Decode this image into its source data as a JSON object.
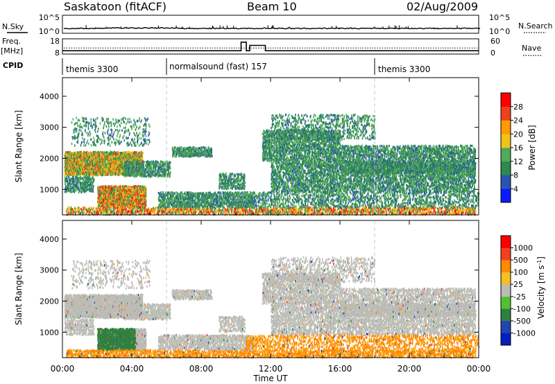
{
  "header": {
    "station": "Saskatoon (fitACF)",
    "beam": "Beam 10",
    "date": "02/Aug/2009"
  },
  "left_labels": {
    "nsky": "N.Sky",
    "freq": "Freq.",
    "freq_unit": "[MHz]",
    "cpid": "CPID"
  },
  "right_labels": {
    "nsearch": "N.Search",
    "nave": "Nave"
  },
  "colors": {
    "scale_power": [
      "#0a1aff",
      "#2855b0",
      "#2e8a4c",
      "#52a85c",
      "#f2c21a",
      "#ff9b00",
      "#f0401c",
      "#ff0000"
    ],
    "scale_velocity": [
      "#ff0000",
      "#f44020",
      "#ff8a00",
      "#f5c020",
      "#bcbcb6",
      "#52c030",
      "#2e8040",
      "#2244b0",
      "#0020c0"
    ]
  },
  "chart_data": [
    {
      "type": "line",
      "name": "noise",
      "left_ticks": [
        "10^5",
        "10^0"
      ],
      "right_ticks": [
        "10^5",
        "10^0"
      ],
      "legend_left": "N.Sky",
      "legend_right": "N.Search"
    },
    {
      "type": "line",
      "name": "freq-nave",
      "left_ticks": [
        18,
        8
      ],
      "right_ticks": [
        60,
        0
      ],
      "ylim_left": [
        8,
        18
      ],
      "ylim_right": [
        0,
        60
      ],
      "freq_step": {
        "x": [
          0,
          10.3,
          10.3,
          10.6,
          10.6,
          10.8,
          10.8,
          11.7,
          11.7,
          24
        ],
        "y": [
          10.2,
          10.2,
          15.8,
          15.8,
          10.2,
          10.2,
          13.7,
          13.7,
          10.2,
          10.2
        ]
      },
      "nave_dotted_y": 24
    },
    {
      "type": "table",
      "name": "cpid",
      "segments": [
        {
          "start": 0,
          "label": "themis 3300"
        },
        {
          "start": 6,
          "label": "normalsound (fast) 157"
        },
        {
          "start": 18,
          "label": "themis 3300"
        }
      ]
    },
    {
      "type": "heatmap",
      "name": "power",
      "ylabel": "Slant Range [km]",
      "yticks": [
        1000,
        2000,
        3000,
        4000
      ],
      "ylim": [
        180,
        4600
      ],
      "xlim": [
        0,
        24
      ],
      "colorbar_ticks": [
        4,
        8,
        12,
        16,
        20,
        24,
        28
      ],
      "colorbar_label": "Power [dB]",
      "colorbar_range": [
        0,
        32
      ]
    },
    {
      "type": "heatmap",
      "name": "velocity",
      "ylabel": "Slant Range [km]",
      "yticks": [
        1000,
        2000,
        3000,
        4000
      ],
      "ylim": [
        180,
        4600
      ],
      "xlim": [
        0,
        24
      ],
      "colorbar_ticks": [
        "1000",
        "500",
        "100",
        "25",
        "-25",
        "-100",
        "-500",
        "-1000"
      ],
      "colorbar_label": "Velocity [m s",
      "colorbar_label_sup": "-1",
      "colorbar_label_end": "]"
    },
    {
      "type": "table",
      "name": "time-axis",
      "xticks": [
        "00:00",
        "04:00",
        "08:00",
        "12:00",
        "16:00",
        "20:00",
        "00:00"
      ],
      "xlabel": "Time UT"
    }
  ]
}
